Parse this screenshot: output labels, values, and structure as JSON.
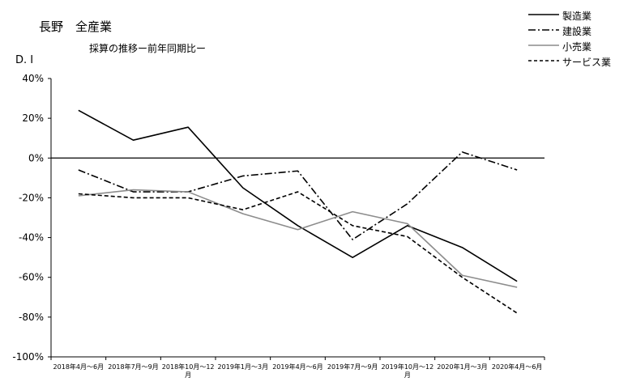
{
  "chart_data": {
    "type": "line",
    "title": "長野　全産業",
    "subtitle": "採算の推移ー前年同期比ー",
    "ylabel": "D. I",
    "ylim": [
      -100,
      40
    ],
    "y_ticks": [
      "40%",
      "20%",
      "0%",
      "-20%",
      "-40%",
      "-60%",
      "-80%",
      "-100%"
    ],
    "categories": [
      "2018年4月～6月",
      "2018年7月～9月",
      "2018年10月～12\n月",
      "2019年1月～3月",
      "2019年4月～6月",
      "2019年7月～9月",
      "2019年10月～12\n月",
      "2020年1月～3月",
      "2020年4月～6月"
    ],
    "series": [
      {
        "name": "製造業",
        "values": [
          24,
          9,
          15.5,
          -15,
          -34,
          -50,
          -34,
          -45,
          -62
        ],
        "color": "#000000",
        "dash": "solid"
      },
      {
        "name": "建設業",
        "values": [
          -6,
          -17,
          -17,
          -9,
          -6.5,
          -41,
          -23,
          3,
          -6
        ],
        "color": "#000000",
        "dash": "dashdot"
      },
      {
        "name": "小売業",
        "values": [
          -19,
          -16,
          -17,
          -28,
          -36,
          -27,
          -33,
          -59,
          -65
        ],
        "color": "#8c8c8c",
        "dash": "solid"
      },
      {
        "name": "サービス業",
        "values": [
          -18,
          -20,
          -20,
          -26,
          -17,
          -34,
          -39.5,
          -60,
          -78
        ],
        "color": "#000000",
        "dash": "dashed"
      }
    ],
    "zero_line": true,
    "grid": false,
    "legend_position": "top-right"
  }
}
